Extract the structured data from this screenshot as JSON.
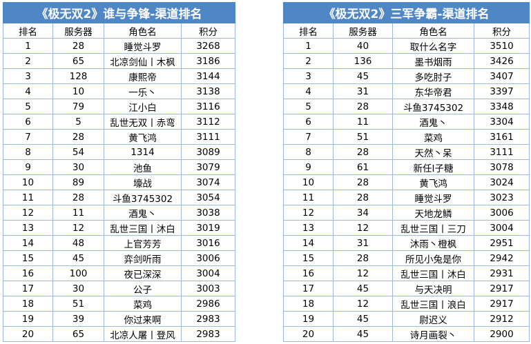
{
  "left": {
    "title": "《极无双2》谁与争锋-渠道排名",
    "headers": [
      "排名",
      "服务器",
      "角色名",
      "积分"
    ],
    "rows": [
      [
        "1",
        "28",
        "睡觉斗罗",
        "3268"
      ],
      [
        "2",
        "65",
        "北凉剑仙丨木枫",
        "3186"
      ],
      [
        "3",
        "128",
        "康熙帝",
        "3144"
      ],
      [
        "4",
        "10",
        "一乐丶",
        "3138"
      ],
      [
        "5",
        "79",
        "江小白",
        "3116"
      ],
      [
        "6",
        "5",
        "乱世无双丨赤弯",
        "3112"
      ],
      [
        "7",
        "28",
        "黄飞鸿",
        "3111"
      ],
      [
        "8",
        "54",
        "1314",
        "3089"
      ],
      [
        "9",
        "30",
        "池鱼",
        "3079"
      ],
      [
        "10",
        "89",
        "壕战",
        "3074"
      ],
      [
        "11",
        "28",
        "斗鱼3745302",
        "3054"
      ],
      [
        "12",
        "11",
        "酒鬼丶",
        "3038"
      ],
      [
        "13",
        "12",
        "乱世三国丨沐白",
        "3019"
      ],
      [
        "14",
        "48",
        "上官芳芳",
        "3016"
      ],
      [
        "15",
        "45",
        "弈剑听雨",
        "3006"
      ],
      [
        "16",
        "100",
        "夜已深深",
        "3004"
      ],
      [
        "17",
        "30",
        "公子",
        "3003"
      ],
      [
        "18",
        "51",
        "菜鸡",
        "2986"
      ],
      [
        "19",
        "39",
        "你过来啊",
        "2983"
      ],
      [
        "20",
        "65",
        "北凉人屠丨登风",
        "2983"
      ]
    ]
  },
  "right": {
    "title": "《极无双2》三军争霸-渠道排名",
    "headers": [
      "排名",
      "服务器",
      "角色名",
      "积分"
    ],
    "rows": [
      [
        "1",
        "40",
        "取什么名字",
        "3510"
      ],
      [
        "2",
        "136",
        "墨书烟雨",
        "3426"
      ],
      [
        "3",
        "45",
        "多吃肘子",
        "3407"
      ],
      [
        "4",
        "31",
        "东华帝君",
        "3397"
      ],
      [
        "5",
        "28",
        "斗鱼3745302",
        "3348"
      ],
      [
        "6",
        "11",
        "酒鬼丶",
        "3304"
      ],
      [
        "7",
        "51",
        "菜鸡",
        "3161"
      ],
      [
        "8",
        "28",
        "天然丶呆",
        "3111"
      ],
      [
        "9",
        "61",
        "新任Ⅰ子糖",
        "3078"
      ],
      [
        "10",
        "28",
        "黄飞鸿",
        "3024"
      ],
      [
        "11",
        "28",
        "睡觉斗罗",
        "3023"
      ],
      [
        "12",
        "34",
        "天地龙鳞",
        "3006"
      ],
      [
        "13",
        "12",
        "乱世三国丨三刀",
        "3004"
      ],
      [
        "14",
        "31",
        "沐雨丶橙枫",
        "2951"
      ],
      [
        "15",
        "28",
        "所见小兔是你",
        "2942"
      ],
      [
        "16",
        "12",
        "乱世三国丨沐白",
        "2931"
      ],
      [
        "17",
        "45",
        "与天决明",
        "2917"
      ],
      [
        "18",
        "12",
        "乱世三国丨浪白",
        "2917"
      ],
      [
        "19",
        "45",
        "尉迟义",
        "2912"
      ],
      [
        "20",
        "45",
        "诗月画裂丶",
        "2900"
      ]
    ]
  }
}
